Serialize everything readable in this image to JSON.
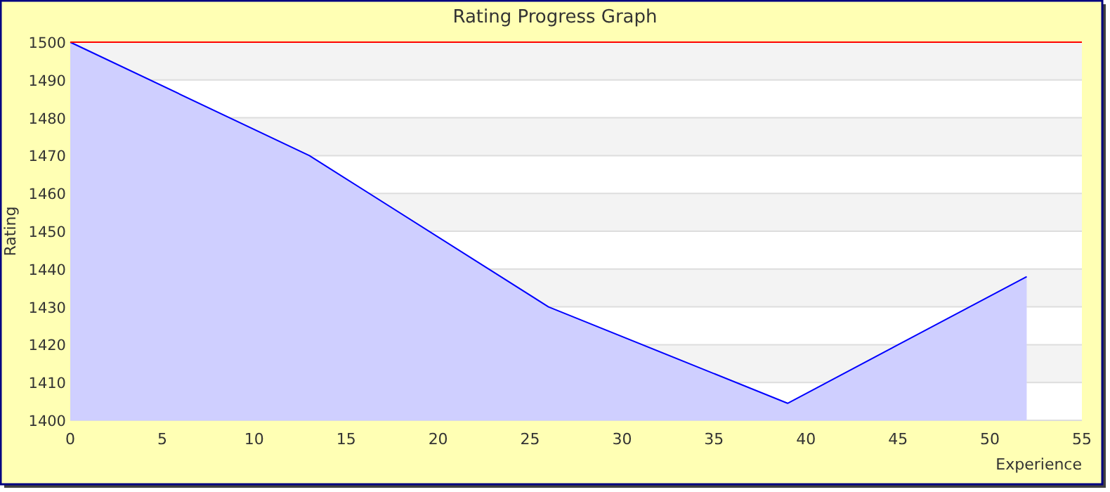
{
  "chart_data": {
    "type": "area",
    "title": "Rating Progress Graph",
    "xlabel": "Experience",
    "ylabel": "Rating",
    "x": [
      0,
      13,
      26,
      39,
      52
    ],
    "series": [
      {
        "color": "#0000ff",
        "values": [
          1500,
          1470,
          1430,
          1404.5,
          1438
        ]
      }
    ],
    "xlim": [
      0,
      55
    ],
    "xticks": [
      0,
      5,
      10,
      15,
      20,
      25,
      30,
      35,
      40,
      45,
      50,
      55
    ],
    "ylim": [
      1400,
      1500
    ],
    "yticks": [
      1400,
      1410,
      1420,
      1430,
      1440,
      1450,
      1460,
      1470,
      1480,
      1490,
      1500
    ],
    "grid": "y",
    "ref_lines": [
      {
        "axis": "y",
        "value": 1500,
        "color": "#ff0000"
      }
    ]
  }
}
